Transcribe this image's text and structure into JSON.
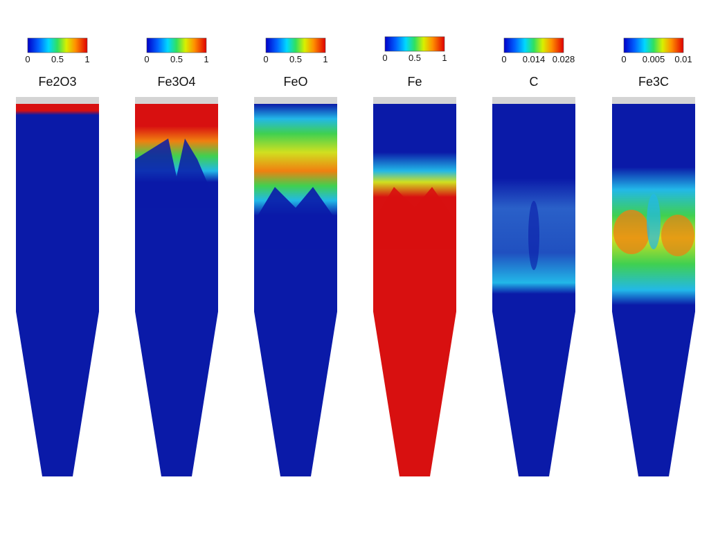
{
  "panels": [
    {
      "title": "Fe2O3",
      "ticks": [
        "0",
        "0.5",
        "1"
      ]
    },
    {
      "title": "Fe3O4",
      "ticks": [
        "0",
        "0.5",
        "1"
      ]
    },
    {
      "title": "FeO",
      "ticks": [
        "0",
        "0.5",
        "1"
      ]
    },
    {
      "title": "Fe",
      "ticks": [
        "0",
        "0.5",
        "1"
      ]
    },
    {
      "title": "C",
      "ticks": [
        "0",
        "0.014",
        "0.028"
      ]
    },
    {
      "title": "Fe3C",
      "ticks": [
        "0",
        "0.005",
        "0.01"
      ]
    }
  ]
}
